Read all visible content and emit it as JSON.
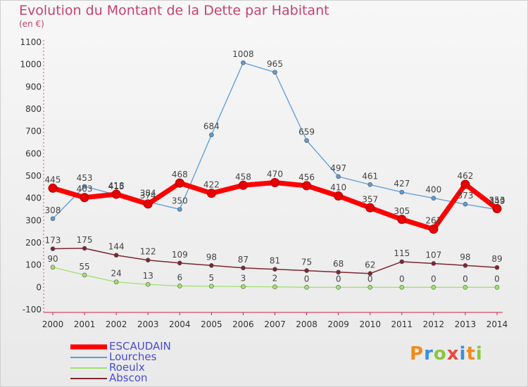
{
  "title": "Evolution du Montant de la Dette par Habitant",
  "subtitle": "(en €)",
  "logo": "Proxiti",
  "chart_data": {
    "type": "line",
    "title": "Evolution du Montant de la Dette par Habitant",
    "ylabel": "(en €)",
    "xlabel": "",
    "x": [
      "2000",
      "2001",
      "2002",
      "2003",
      "2004",
      "2005",
      "2006",
      "2007",
      "2008",
      "2009",
      "2010",
      "2011",
      "2012",
      "2013",
      "2014"
    ],
    "ylim": [
      -100,
      1100
    ],
    "yticks": [
      -100,
      0,
      100,
      200,
      300,
      400,
      500,
      600,
      700,
      800,
      900,
      1000,
      1100
    ],
    "grid": false,
    "legend": "bottom-left",
    "series": [
      {
        "name": "ESCAUDAIN",
        "color": "#ff0000",
        "values": [
          445,
          403,
          418,
          374,
          468,
          422,
          458,
          470,
          456,
          410,
          357,
          305,
          261,
          462,
          353
        ]
      },
      {
        "name": "Lourches",
        "color": "#5b9bd5",
        "values": [
          308,
          453,
          415,
          384,
          350,
          684,
          1008,
          965,
          659,
          497,
          461,
          427,
          400,
          373,
          349
        ]
      },
      {
        "name": "Roeulx",
        "color": "#9ee36b",
        "values": [
          90,
          55,
          24,
          13,
          6,
          5,
          3,
          2,
          0,
          0,
          0,
          0,
          0,
          0,
          0
        ]
      },
      {
        "name": "Abscon",
        "color": "#7b2730",
        "values": [
          173,
          175,
          144,
          122,
          109,
          98,
          87,
          81,
          75,
          68,
          62,
          115,
          107,
          98,
          89
        ]
      }
    ]
  }
}
